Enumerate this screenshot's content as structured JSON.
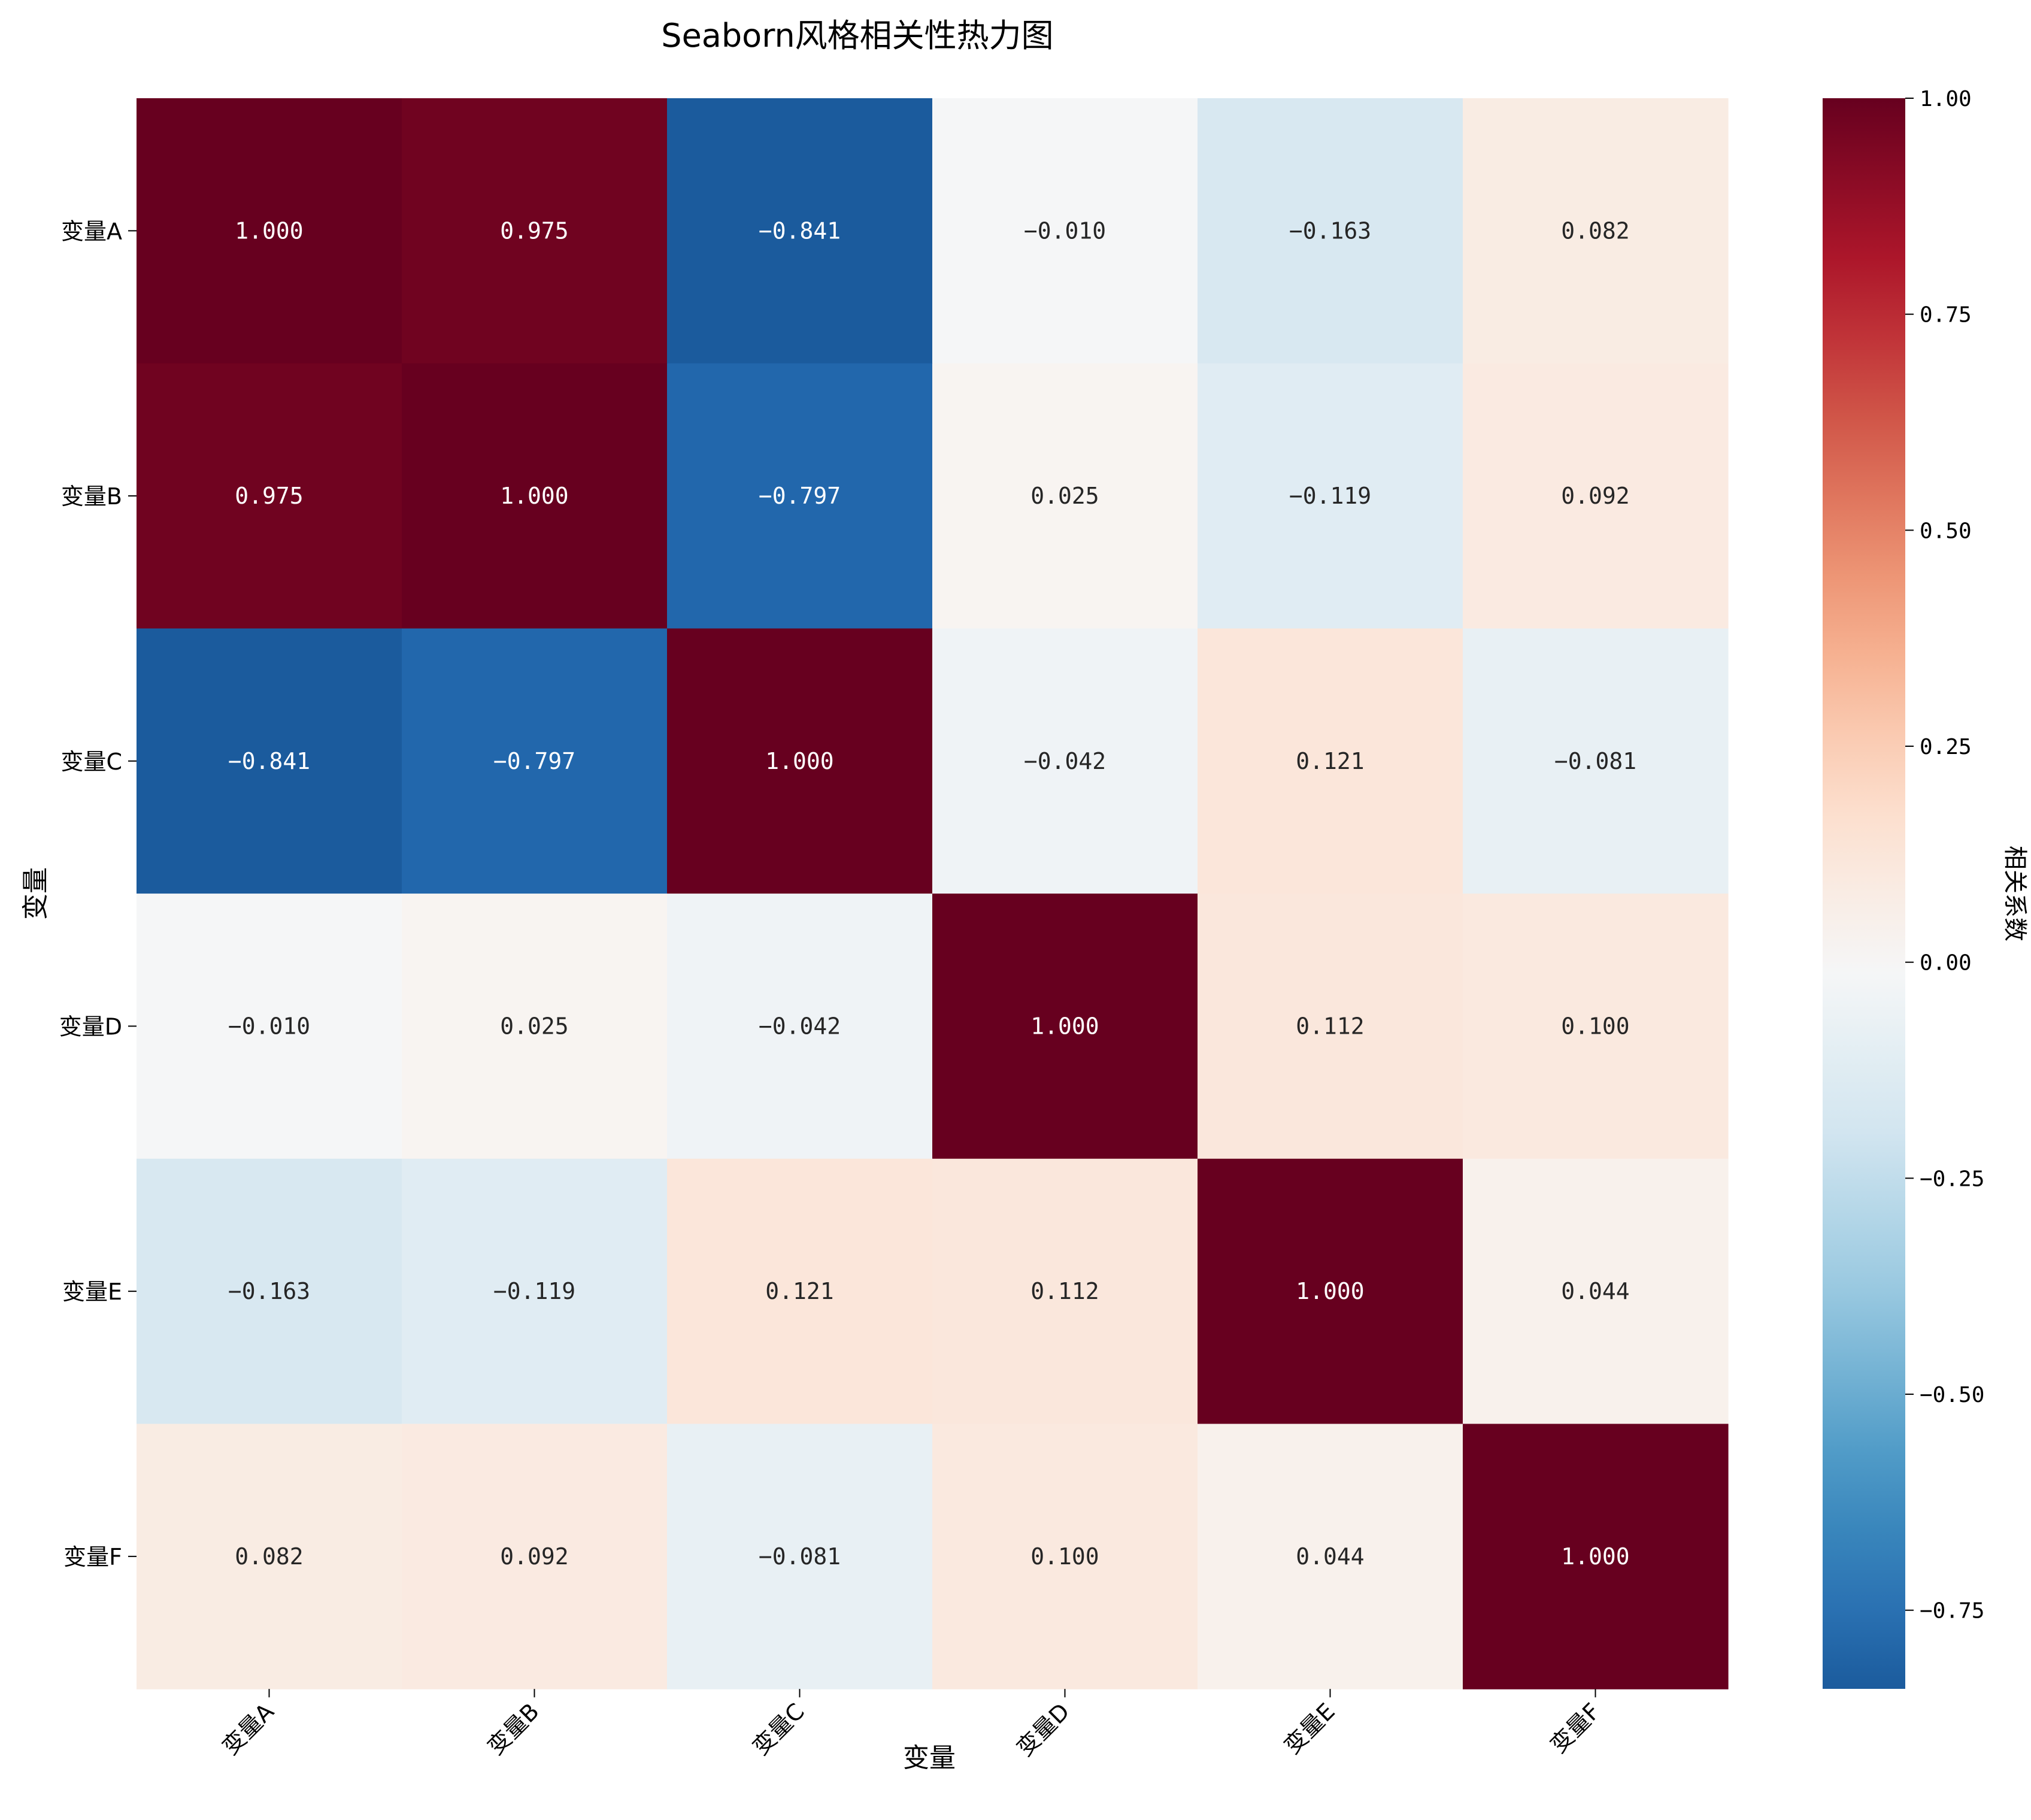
{
  "chart_data": {
    "type": "heatmap",
    "title": "Seaborn风格相关性热力图",
    "xlabel": "变量",
    "ylabel": "变量",
    "row_labels": [
      "变量A",
      "变量B",
      "变量C",
      "变量D",
      "变量E",
      "变量F"
    ],
    "col_labels": [
      "变量A",
      "变量B",
      "变量C",
      "变量D",
      "变量E",
      "变量F"
    ],
    "values": [
      [
        1.0,
        0.975,
        -0.841,
        -0.01,
        -0.163,
        0.082
      ],
      [
        0.975,
        1.0,
        -0.797,
        0.025,
        -0.119,
        0.092
      ],
      [
        -0.841,
        -0.797,
        1.0,
        -0.042,
        0.121,
        -0.081
      ],
      [
        -0.01,
        0.025,
        -0.042,
        1.0,
        0.112,
        0.1
      ],
      [
        -0.163,
        -0.119,
        0.121,
        0.112,
        1.0,
        0.044
      ],
      [
        0.082,
        0.092,
        -0.081,
        0.1,
        0.044,
        1.0
      ]
    ],
    "value_format": "0.000",
    "colormap": "RdBu_r",
    "vmin": -0.841,
    "vmax": 1.0,
    "colorbar": {
      "label": "相关系数",
      "ticks": [
        1.0,
        0.75,
        0.5,
        0.25,
        0.0,
        -0.25,
        -0.5,
        -0.75
      ],
      "tick_labels": [
        "1.00",
        "0.75",
        "0.50",
        "0.25",
        "0.00",
        "−0.25",
        "−0.50",
        "−0.75"
      ]
    },
    "grid": false,
    "legend": "colorbar-right"
  }
}
